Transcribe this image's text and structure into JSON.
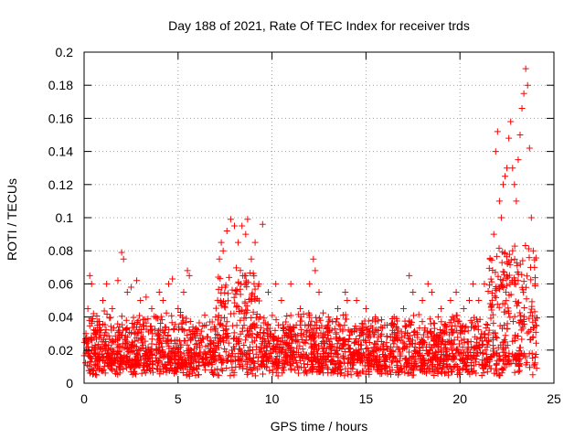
{
  "chart_data": {
    "type": "scatter",
    "title": "Day 188 of 2021, Rate Of TEC Index for receiver trds",
    "xlabel": "GPS time / hours",
    "ylabel": "ROTI / TECUs",
    "xlim": [
      0,
      25
    ],
    "ylim": [
      0,
      0.2
    ],
    "xticks": [
      0,
      5,
      10,
      15,
      20,
      25
    ],
    "yticks": [
      0,
      0.02,
      0.04,
      0.06,
      0.08,
      0.1,
      0.12,
      0.14,
      0.16,
      0.18,
      0.2
    ],
    "grid": true,
    "marker": "+",
    "series": [
      {
        "color": "#ff0000",
        "points": [
          [
            0.1,
            0.03
          ],
          [
            0.2,
            0.045
          ],
          [
            0.3,
            0.065
          ],
          [
            0.4,
            0.06
          ],
          [
            0.5,
            0.042
          ],
          [
            0.7,
            0.035
          ],
          [
            1.0,
            0.05
          ],
          [
            1.2,
            0.06
          ],
          [
            1.5,
            0.045
          ],
          [
            1.8,
            0.062
          ],
          [
            2.0,
            0.079
          ],
          [
            2.1,
            0.075
          ],
          [
            2.3,
            0.055
          ],
          [
            2.5,
            0.058
          ],
          [
            2.8,
            0.062
          ],
          [
            3.0,
            0.05
          ],
          [
            3.3,
            0.052
          ],
          [
            3.6,
            0.045
          ],
          [
            4.0,
            0.055
          ],
          [
            4.2,
            0.05
          ],
          [
            4.5,
            0.06
          ],
          [
            4.7,
            0.063
          ],
          [
            5.0,
            0.045
          ],
          [
            5.3,
            0.055
          ],
          [
            5.5,
            0.068
          ],
          [
            5.6,
            0.065
          ],
          [
            6.0,
            0.03
          ],
          [
            6.5,
            0.035
          ],
          [
            7.0,
            0.04
          ],
          [
            7.2,
            0.075
          ],
          [
            7.3,
            0.085
          ],
          [
            7.4,
            0.08
          ],
          [
            7.6,
            0.092
          ],
          [
            7.8,
            0.099
          ],
          [
            8.0,
            0.095
          ],
          [
            8.2,
            0.085
          ],
          [
            8.4,
            0.095
          ],
          [
            8.6,
            0.09
          ],
          [
            8.7,
            0.099
          ],
          [
            8.9,
            0.075
          ],
          [
            9.1,
            0.085
          ],
          [
            9.3,
            0.06
          ],
          [
            9.5,
            0.096
          ],
          [
            9.8,
            0.055
          ],
          [
            10.2,
            0.06
          ],
          [
            10.5,
            0.05
          ],
          [
            11.0,
            0.06
          ],
          [
            11.5,
            0.045
          ],
          [
            12.0,
            0.06
          ],
          [
            12.2,
            0.075
          ],
          [
            12.3,
            0.068
          ],
          [
            12.5,
            0.055
          ],
          [
            13.0,
            0.04
          ],
          [
            13.5,
            0.045
          ],
          [
            13.9,
            0.055
          ],
          [
            14.0,
            0.05
          ],
          [
            14.5,
            0.05
          ],
          [
            15.0,
            0.045
          ],
          [
            15.5,
            0.04
          ],
          [
            16.0,
            0.035
          ],
          [
            16.5,
            0.04
          ],
          [
            17.0,
            0.045
          ],
          [
            17.3,
            0.065
          ],
          [
            17.5,
            0.055
          ],
          [
            18.0,
            0.05
          ],
          [
            18.3,
            0.06
          ],
          [
            18.5,
            0.055
          ],
          [
            19.0,
            0.045
          ],
          [
            19.5,
            0.05
          ],
          [
            19.8,
            0.055
          ],
          [
            20.2,
            0.045
          ],
          [
            20.5,
            0.05
          ],
          [
            20.7,
            0.06
          ],
          [
            21.0,
            0.05
          ],
          [
            21.3,
            0.06
          ],
          [
            21.6,
            0.075
          ],
          [
            21.8,
            0.09
          ],
          [
            21.9,
            0.14
          ],
          [
            22.0,
            0.152
          ],
          [
            22.1,
            0.11
          ],
          [
            22.2,
            0.1
          ],
          [
            22.3,
            0.12
          ],
          [
            22.4,
            0.125
          ],
          [
            22.5,
            0.13
          ],
          [
            22.6,
            0.148
          ],
          [
            22.7,
            0.158
          ],
          [
            22.8,
            0.13
          ],
          [
            22.9,
            0.12
          ],
          [
            23.0,
            0.11
          ],
          [
            23.1,
            0.135
          ],
          [
            23.2,
            0.15
          ],
          [
            23.3,
            0.166
          ],
          [
            23.4,
            0.175
          ],
          [
            23.5,
            0.19
          ],
          [
            23.6,
            0.18
          ],
          [
            23.7,
            0.142
          ],
          [
            23.8,
            0.1
          ],
          [
            23.9,
            0.08
          ],
          [
            24.0,
            0.06
          ]
        ]
      }
    ]
  }
}
